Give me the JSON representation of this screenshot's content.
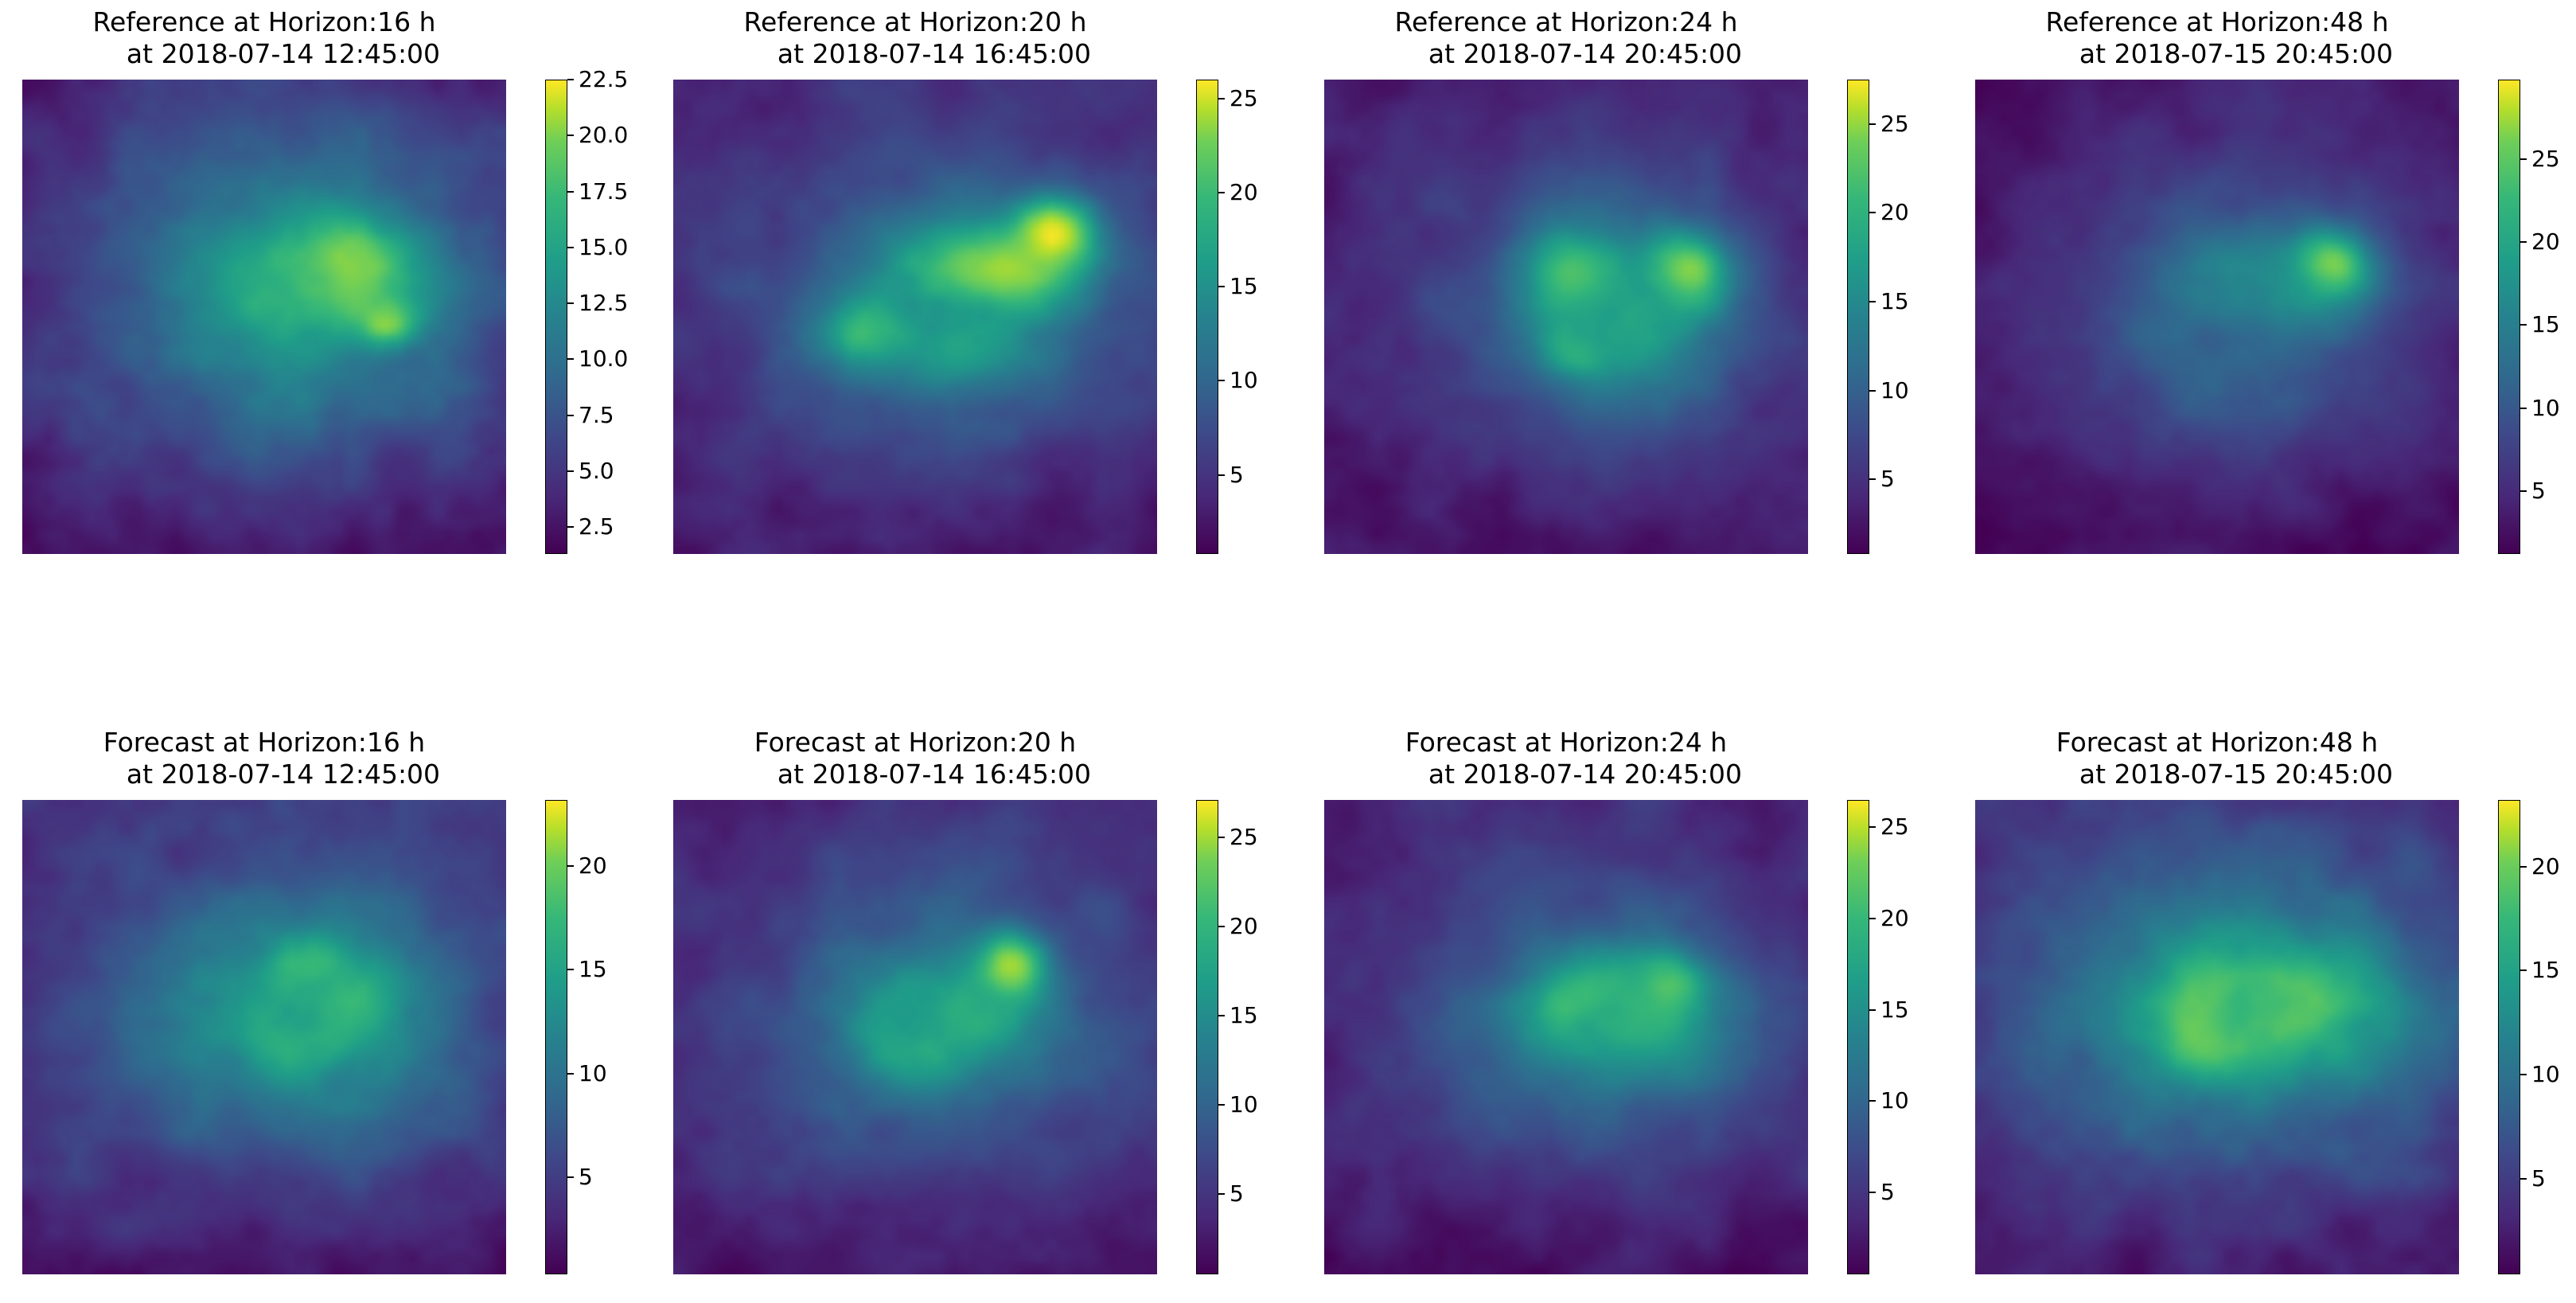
{
  "chart_data": [
    {
      "type": "heatmap",
      "row": "reference",
      "title_line1": "Reference at Horizon:16 h",
      "title_line2": "at 2018-07-14 12:45:00",
      "colorbar": {
        "range": [
          1.3,
          22.5
        ],
        "ticks": [
          "2.5",
          "5.0",
          "7.5",
          "10.0",
          "12.5",
          "15.0",
          "17.5",
          "20.0",
          "22.5"
        ]
      },
      "blobs": [
        {
          "x": 0.65,
          "y": 0.4,
          "w": 0.16,
          "h": 0.1,
          "v": 22
        },
        {
          "x": 0.74,
          "y": 0.5,
          "w": 0.07,
          "h": 0.05,
          "v": 21
        },
        {
          "x": 0.55,
          "y": 0.45,
          "w": 0.18,
          "h": 0.14,
          "v": 15
        }
      ],
      "base": 9,
      "spread": 0.4,
      "dark_bottom": 2
    },
    {
      "type": "heatmap",
      "row": "reference",
      "title_line1": "Reference at Horizon:20 h",
      "title_line2": "at 2018-07-14 16:45:00",
      "colorbar": {
        "range": [
          0.8,
          26
        ],
        "ticks": [
          "5",
          "10",
          "15",
          "20",
          "25"
        ]
      },
      "blobs": [
        {
          "x": 0.65,
          "y": 0.4,
          "w": 0.18,
          "h": 0.1,
          "v": 23
        },
        {
          "x": 0.78,
          "y": 0.32,
          "w": 0.08,
          "h": 0.07,
          "v": 25
        },
        {
          "x": 0.4,
          "y": 0.52,
          "w": 0.1,
          "h": 0.08,
          "v": 18
        },
        {
          "x": 0.6,
          "y": 0.55,
          "w": 0.15,
          "h": 0.1,
          "v": 15
        }
      ],
      "base": 8,
      "spread": 0.42,
      "dark_bottom": 2
    },
    {
      "type": "heatmap",
      "row": "reference",
      "title_line1": "Reference at Horizon:24 h",
      "title_line2": "at 2018-07-14 20:45:00",
      "colorbar": {
        "range": [
          0.8,
          27.5
        ],
        "ticks": [
          "5",
          "10",
          "15",
          "20",
          "25"
        ]
      },
      "blobs": [
        {
          "x": 0.52,
          "y": 0.42,
          "w": 0.1,
          "h": 0.1,
          "v": 26
        },
        {
          "x": 0.74,
          "y": 0.4,
          "w": 0.08,
          "h": 0.08,
          "v": 27
        },
        {
          "x": 0.53,
          "y": 0.55,
          "w": 0.08,
          "h": 0.06,
          "v": 24
        },
        {
          "x": 0.6,
          "y": 0.5,
          "w": 0.2,
          "h": 0.16,
          "v": 16
        }
      ],
      "base": 7,
      "spread": 0.4,
      "dark_bottom": 2
    },
    {
      "type": "heatmap",
      "row": "reference",
      "title_line1": "Reference at Horizon:48 h",
      "title_line2": "at 2018-07-15 20:45:00",
      "colorbar": {
        "range": [
          1.2,
          29.8
        ],
        "ticks": [
          "5",
          "10",
          "15",
          "20",
          "25"
        ]
      },
      "blobs": [
        {
          "x": 0.72,
          "y": 0.39,
          "w": 0.08,
          "h": 0.07,
          "v": 29
        },
        {
          "x": 0.58,
          "y": 0.45,
          "w": 0.2,
          "h": 0.12,
          "v": 17
        },
        {
          "x": 0.5,
          "y": 0.6,
          "w": 0.14,
          "h": 0.16,
          "v": 11
        }
      ],
      "base": 7,
      "spread": 0.4,
      "dark_bottom": 2
    },
    {
      "type": "heatmap",
      "row": "forecast",
      "title_line1": "Forecast at Horizon:16 h",
      "title_line2": "at 2018-07-14 12:45:00",
      "colorbar": {
        "range": [
          0.3,
          23.2
        ],
        "ticks": [
          "5",
          "10",
          "15",
          "20"
        ]
      },
      "blobs": [
        {
          "x": 0.58,
          "y": 0.36,
          "w": 0.07,
          "h": 0.07,
          "v": 22
        },
        {
          "x": 0.58,
          "y": 0.48,
          "w": 0.1,
          "h": 0.06,
          "v": 22
        },
        {
          "x": 0.66,
          "y": 0.42,
          "w": 0.1,
          "h": 0.08,
          "v": 18
        },
        {
          "x": 0.58,
          "y": 0.45,
          "w": 0.2,
          "h": 0.16,
          "v": 14
        }
      ],
      "base": 8,
      "spread": 0.4,
      "dark_bottom": 1
    },
    {
      "type": "heatmap",
      "row": "forecast",
      "title_line1": "Forecast at Horizon:20 h",
      "title_line2": "at 2018-07-14 16:45:00",
      "colorbar": {
        "range": [
          0.5,
          27.1
        ],
        "ticks": [
          "5",
          "10",
          "15",
          "20",
          "25"
        ]
      },
      "blobs": [
        {
          "x": 0.69,
          "y": 0.35,
          "w": 0.07,
          "h": 0.07,
          "v": 26
        },
        {
          "x": 0.57,
          "y": 0.45,
          "w": 0.18,
          "h": 0.12,
          "v": 18
        },
        {
          "x": 0.47,
          "y": 0.48,
          "w": 0.12,
          "h": 0.1,
          "v": 16
        }
      ],
      "base": 8,
      "spread": 0.42,
      "dark_bottom": 1
    },
    {
      "type": "heatmap",
      "row": "forecast",
      "title_line1": "Forecast at Horizon:24 h",
      "title_line2": "at 2018-07-14 20:45:00",
      "colorbar": {
        "range": [
          0.5,
          26.5
        ],
        "ticks": [
          "5",
          "10",
          "15",
          "20",
          "25"
        ]
      },
      "blobs": [
        {
          "x": 0.7,
          "y": 0.4,
          "w": 0.07,
          "h": 0.07,
          "v": 26
        },
        {
          "x": 0.55,
          "y": 0.42,
          "w": 0.1,
          "h": 0.07,
          "v": 22
        },
        {
          "x": 0.62,
          "y": 0.45,
          "w": 0.22,
          "h": 0.14,
          "v": 17
        }
      ],
      "base": 7,
      "spread": 0.42,
      "dark_bottom": 1
    },
    {
      "type": "heatmap",
      "row": "forecast",
      "title_line1": "Forecast at Horizon:48 h",
      "title_line2": "at 2018-07-15 20:45:00",
      "colorbar": {
        "range": [
          0.4,
          23.2
        ],
        "ticks": [
          "5",
          "10",
          "15",
          "20"
        ]
      },
      "blobs": [
        {
          "x": 0.62,
          "y": 0.42,
          "w": 0.14,
          "h": 0.07,
          "v": 23
        },
        {
          "x": 0.48,
          "y": 0.48,
          "w": 0.1,
          "h": 0.08,
          "v": 20
        },
        {
          "x": 0.58,
          "y": 0.42,
          "w": 0.28,
          "h": 0.16,
          "v": 16
        }
      ],
      "base": 8,
      "spread": 0.44,
      "dark_bottom": 1
    }
  ],
  "colormap": [
    "#440154",
    "#482878",
    "#3e4989",
    "#31688e",
    "#26828e",
    "#1f9e89",
    "#35b779",
    "#6ece58",
    "#b5de2b",
    "#fde725"
  ]
}
